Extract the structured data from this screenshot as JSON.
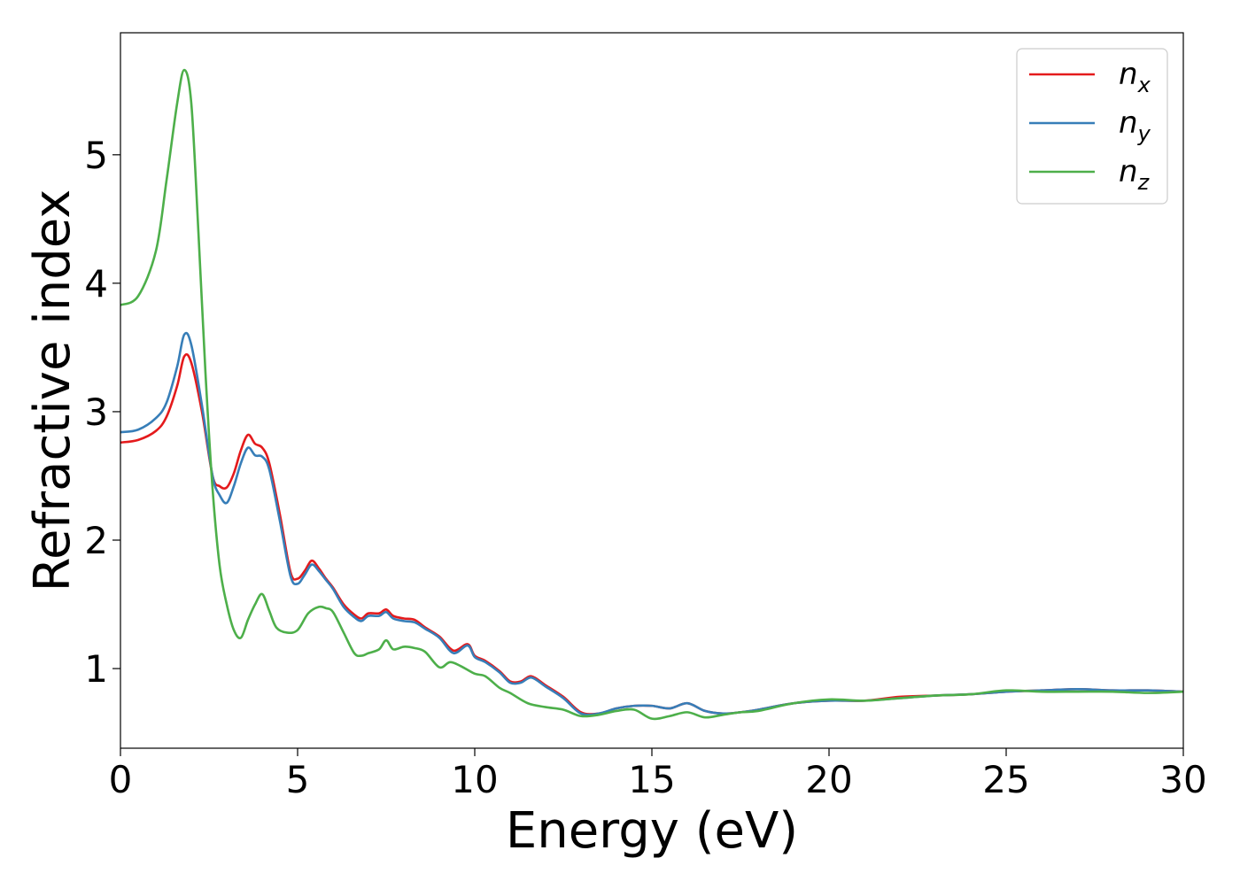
{
  "chart_data": {
    "type": "line",
    "title": "",
    "xlabel": "Energy (eV)",
    "ylabel": "Refractive index",
    "xlim": [
      0,
      30
    ],
    "ylim": [
      0.38,
      5.95
    ],
    "xticks": [
      0,
      5,
      10,
      15,
      20,
      25,
      30
    ],
    "yticks": [
      1,
      2,
      3,
      4,
      5
    ],
    "grid": false,
    "legend_position": "top-right",
    "colors": {
      "nx": "#e41a1c",
      "ny": "#377eb8",
      "nz": "#4daf4a"
    },
    "series": [
      {
        "name": "nx",
        "label_main": "n",
        "label_sub": "x",
        "x": [
          0,
          0.5,
          1.0,
          1.3,
          1.6,
          1.8,
          2.0,
          2.3,
          2.6,
          2.8,
          3.0,
          3.2,
          3.4,
          3.6,
          3.8,
          4.0,
          4.2,
          4.5,
          4.8,
          5.0,
          5.2,
          5.4,
          5.6,
          5.8,
          6.0,
          6.3,
          6.6,
          6.8,
          7.0,
          7.3,
          7.5,
          7.7,
          8.0,
          8.3,
          8.6,
          9.0,
          9.4,
          9.8,
          10.0,
          10.3,
          10.7,
          11.0,
          11.3,
          11.6,
          12.0,
          12.5,
          13.0,
          13.5,
          14.0,
          14.5,
          15.0,
          15.5,
          16.0,
          16.5,
          17.0,
          17.5,
          18.0,
          19.0,
          20.0,
          21.0,
          22.0,
          23.0,
          24.0,
          25.0,
          26.0,
          27.0,
          28.0,
          29.0,
          30.0
        ],
        "y": [
          2.76,
          2.78,
          2.85,
          2.96,
          3.2,
          3.43,
          3.38,
          3.0,
          2.5,
          2.42,
          2.41,
          2.52,
          2.7,
          2.82,
          2.75,
          2.72,
          2.6,
          2.2,
          1.75,
          1.7,
          1.76,
          1.84,
          1.78,
          1.7,
          1.63,
          1.5,
          1.42,
          1.39,
          1.43,
          1.43,
          1.46,
          1.41,
          1.39,
          1.38,
          1.32,
          1.25,
          1.14,
          1.19,
          1.1,
          1.06,
          0.98,
          0.9,
          0.9,
          0.94,
          0.87,
          0.78,
          0.66,
          0.65,
          0.69,
          0.71,
          0.71,
          0.69,
          0.73,
          0.67,
          0.65,
          0.66,
          0.68,
          0.73,
          0.75,
          0.75,
          0.78,
          0.79,
          0.8,
          0.82,
          0.83,
          0.84,
          0.83,
          0.83,
          0.82
        ]
      },
      {
        "name": "ny",
        "label_main": "n",
        "label_sub": "y",
        "x": [
          0,
          0.5,
          1.0,
          1.3,
          1.6,
          1.8,
          2.0,
          2.3,
          2.6,
          2.8,
          3.0,
          3.2,
          3.4,
          3.6,
          3.8,
          4.0,
          4.2,
          4.5,
          4.8,
          5.0,
          5.2,
          5.4,
          5.6,
          5.8,
          6.0,
          6.3,
          6.6,
          6.8,
          7.0,
          7.3,
          7.5,
          7.7,
          8.0,
          8.3,
          8.6,
          9.0,
          9.4,
          9.8,
          10.0,
          10.3,
          10.7,
          11.0,
          11.3,
          11.6,
          12.0,
          12.5,
          13.0,
          13.5,
          14.0,
          14.5,
          15.0,
          15.5,
          16.0,
          16.5,
          17.0,
          17.5,
          18.0,
          19.0,
          20.0,
          21.0,
          22.0,
          23.0,
          24.0,
          25.0,
          26.0,
          27.0,
          28.0,
          29.0,
          30.0
        ],
        "y": [
          2.84,
          2.86,
          2.95,
          3.07,
          3.35,
          3.6,
          3.52,
          3.05,
          2.5,
          2.35,
          2.29,
          2.42,
          2.6,
          2.72,
          2.66,
          2.65,
          2.55,
          2.15,
          1.72,
          1.66,
          1.73,
          1.81,
          1.76,
          1.69,
          1.62,
          1.48,
          1.4,
          1.37,
          1.41,
          1.41,
          1.44,
          1.39,
          1.37,
          1.36,
          1.31,
          1.24,
          1.12,
          1.18,
          1.09,
          1.05,
          0.97,
          0.89,
          0.89,
          0.93,
          0.86,
          0.77,
          0.65,
          0.65,
          0.69,
          0.71,
          0.71,
          0.69,
          0.73,
          0.67,
          0.65,
          0.66,
          0.68,
          0.73,
          0.75,
          0.75,
          0.77,
          0.79,
          0.8,
          0.82,
          0.83,
          0.84,
          0.83,
          0.83,
          0.82
        ]
      },
      {
        "name": "nz",
        "label_main": "n",
        "label_sub": "z",
        "x": [
          0,
          0.5,
          1.0,
          1.3,
          1.6,
          1.8,
          2.0,
          2.2,
          2.4,
          2.6,
          2.8,
          3.0,
          3.2,
          3.4,
          3.6,
          3.8,
          4.0,
          4.2,
          4.4,
          4.7,
          5.0,
          5.3,
          5.6,
          5.8,
          6.0,
          6.3,
          6.6,
          6.8,
          7.0,
          7.3,
          7.5,
          7.7,
          8.0,
          8.3,
          8.6,
          9.0,
          9.3,
          9.6,
          10.0,
          10.3,
          10.7,
          11.0,
          11.5,
          12.0,
          12.5,
          13.0,
          13.5,
          14.0,
          14.5,
          15.0,
          15.5,
          16.0,
          16.5,
          17.0,
          17.5,
          18.0,
          19.0,
          20.0,
          21.0,
          22.0,
          23.0,
          24.0,
          25.0,
          26.0,
          27.0,
          28.0,
          29.0,
          30.0
        ],
        "y": [
          3.83,
          3.9,
          4.25,
          4.8,
          5.4,
          5.66,
          5.4,
          4.4,
          3.3,
          2.4,
          1.8,
          1.5,
          1.3,
          1.24,
          1.38,
          1.5,
          1.58,
          1.45,
          1.32,
          1.28,
          1.3,
          1.43,
          1.48,
          1.47,
          1.44,
          1.28,
          1.12,
          1.1,
          1.12,
          1.15,
          1.22,
          1.15,
          1.17,
          1.16,
          1.13,
          1.01,
          1.05,
          1.02,
          0.96,
          0.94,
          0.85,
          0.81,
          0.73,
          0.7,
          0.68,
          0.63,
          0.64,
          0.67,
          0.68,
          0.61,
          0.63,
          0.66,
          0.62,
          0.64,
          0.66,
          0.67,
          0.73,
          0.76,
          0.75,
          0.77,
          0.79,
          0.8,
          0.83,
          0.82,
          0.82,
          0.82,
          0.81,
          0.82
        ]
      }
    ]
  }
}
